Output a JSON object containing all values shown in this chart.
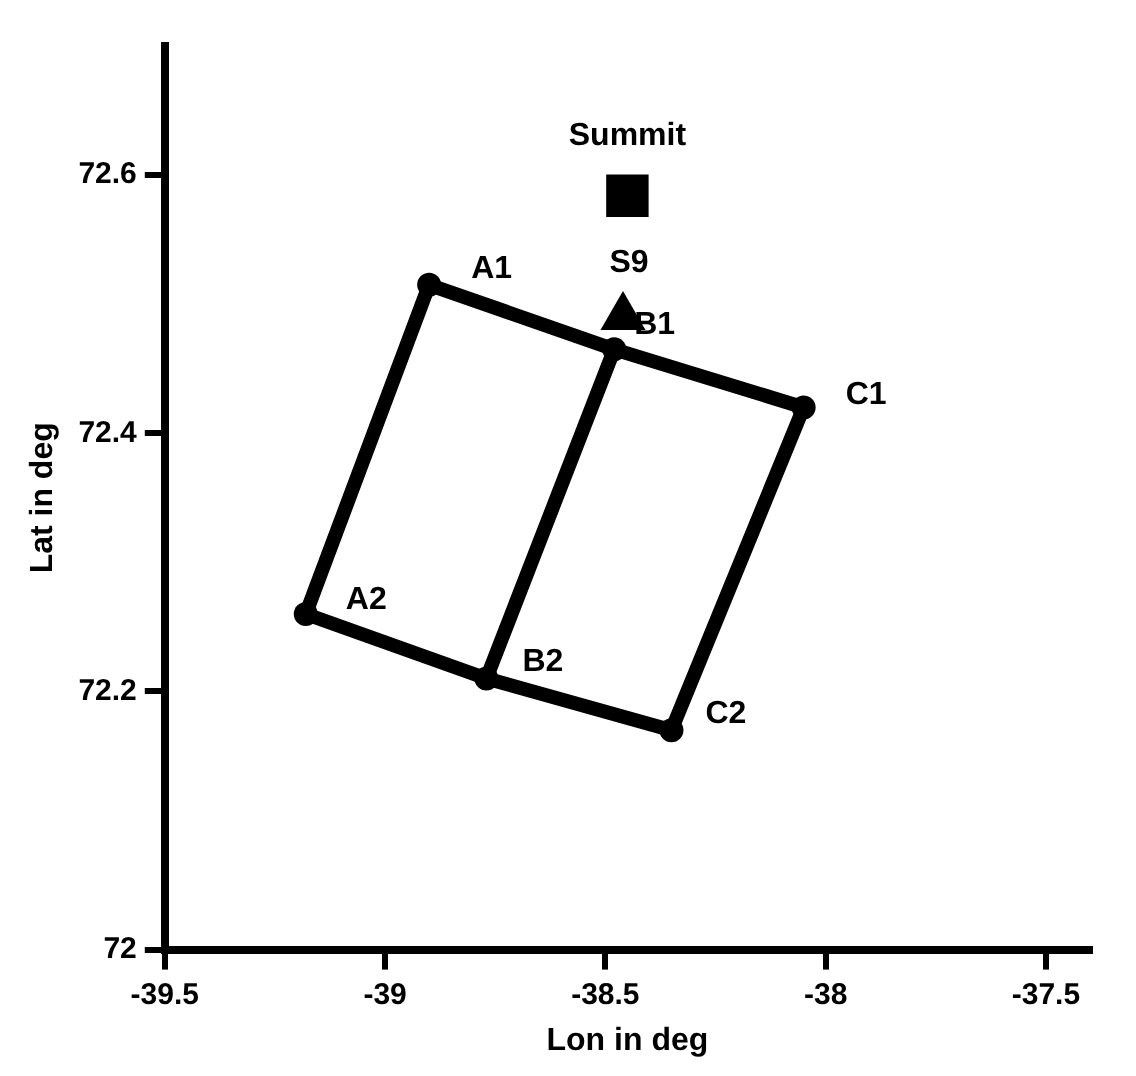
{
  "chart_data": {
    "type": "line",
    "xlabel": "Lon in deg",
    "ylabel": "Lat in deg",
    "xlim": [
      -39.5,
      -37.4
    ],
    "xticks": [
      -39.5,
      -39,
      -38.5,
      -38,
      -37.5
    ],
    "ylim": [
      72,
      72.7
    ],
    "yticks": [
      72,
      72.2,
      72.4,
      72.6
    ],
    "grid": false,
    "legend": false,
    "marker": "circle",
    "line_style": "solid",
    "series": [
      {
        "color": "#000000",
        "x": [
          -38.9,
          -38.48,
          -38.05
        ],
        "values": [
          72.515,
          72.465,
          72.42
        ]
      },
      {
        "color": "#000000",
        "x": [
          -39.18,
          -38.77,
          -38.35
        ],
        "values": [
          72.26,
          72.21,
          72.17
        ]
      },
      {
        "color": "#000000",
        "marker": "none",
        "x": [
          -38.9,
          -39.18
        ],
        "values": [
          72.515,
          72.26
        ]
      },
      {
        "color": "#000000",
        "marker": "none",
        "x": [
          -38.48,
          -38.77
        ],
        "values": [
          72.465,
          72.21
        ]
      },
      {
        "color": "#000000",
        "marker": "none",
        "x": [
          -38.05,
          -38.35
        ],
        "values": [
          72.42,
          72.17
        ]
      },
      {
        "type": "scatter",
        "color": "#000000",
        "marker": "triangle",
        "x": [
          -38.46
        ],
        "values": [
          72.49
        ]
      },
      {
        "type": "scatter",
        "color": "#000000",
        "marker": "square",
        "x": [
          -38.45
        ],
        "values": [
          72.584
        ]
      }
    ],
    "annotations": [
      {
        "text": "Summit",
        "x": -38.45,
        "y": 72.584
      },
      {
        "text": "S9",
        "x": -38.46,
        "y": 72.49
      },
      {
        "text": "A1",
        "x": -38.9,
        "y": 72.515
      },
      {
        "text": "B1",
        "x": -38.48,
        "y": 72.465
      },
      {
        "text": "C1",
        "x": -38.05,
        "y": 72.42
      },
      {
        "text": "A2",
        "x": -39.18,
        "y": 72.26
      },
      {
        "text": "B2",
        "x": -38.77,
        "y": 72.21
      },
      {
        "text": "C2",
        "x": -38.35,
        "y": 72.17
      }
    ]
  }
}
